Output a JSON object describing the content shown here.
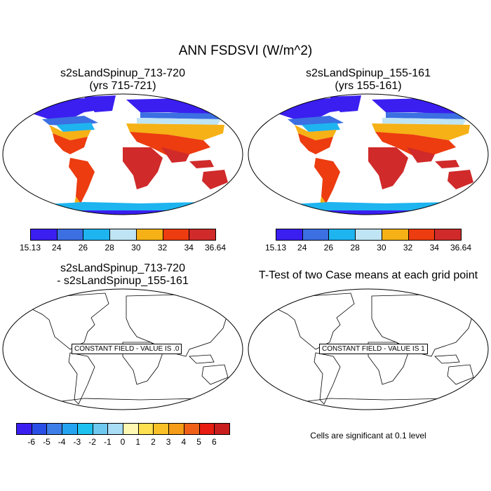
{
  "title": "ANN FSDSVI (W/m^2)",
  "panels": {
    "top_left": {
      "line1": "s2sLandSpinup_713-720",
      "line2": "(yrs 715-721)"
    },
    "top_right": {
      "line1": "s2sLandSpinup_155-161",
      "line2": "(yrs 155-161)"
    },
    "bottom_left": {
      "line1": "s2sLandSpinup_713-720",
      "line2": "- s2sLandSpinup_155-161",
      "field_label": "CONSTANT FIELD - VALUE IS .0"
    },
    "bottom_right": {
      "line1": "T-Test of two Case means at each grid point",
      "field_label": "CONSTANT FIELD - VALUE IS 1",
      "note": "Cells are significant at 0.1 level"
    }
  },
  "colorbar_abs": {
    "labels": [
      "15.13",
      "24",
      "26",
      "28",
      "30",
      "32",
      "34",
      "36.64"
    ],
    "colors": [
      "#3a1ff0",
      "#3b6fe2",
      "#1eb4f0",
      "#bfe4f3",
      "#f5b116",
      "#ec3c10",
      "#d02a2a"
    ]
  },
  "colorbar_diff": {
    "labels": [
      "-6",
      "-5",
      "-4",
      "-3",
      "-2",
      "-1",
      "0",
      "1",
      "2",
      "3",
      "4",
      "5",
      "6"
    ],
    "colors": [
      "#3a1ff0",
      "#2a4fe6",
      "#3e7ee8",
      "#24a4f0",
      "#1ec2f0",
      "#6fc8ee",
      "#a9dcf5",
      "#fff8b3",
      "#ffe050",
      "#f9c028",
      "#f59c18",
      "#f06018",
      "#e81c10",
      "#c81e1e"
    ]
  }
}
